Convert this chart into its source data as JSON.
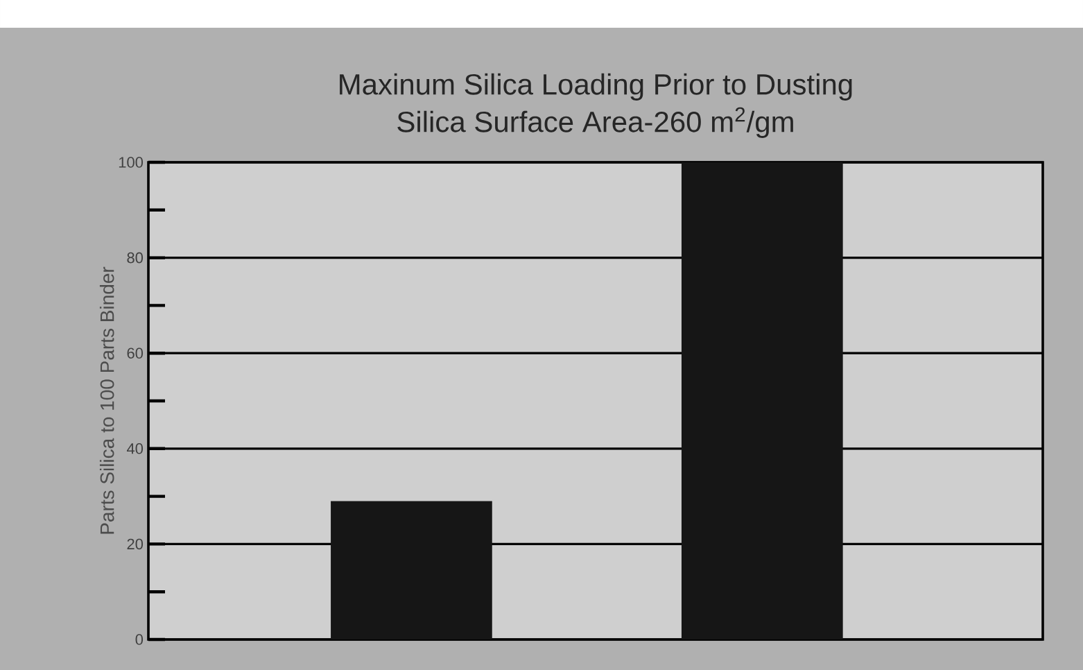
{
  "chart_data": {
    "type": "bar",
    "title": "Maxinum Silica Loading Prior to Dusting",
    "subtitle": "Silica Surface Area-260 m$^{2}$/gm",
    "ylabel": "Parts Silica to 100 Parts Binder",
    "categories": [
      null,
      null
    ],
    "values": [
      29,
      100
    ],
    "color": "#161616",
    "ylim": [
      0,
      100
    ],
    "yticks": [
      0,
      {
        "value": 10,
        "label": null
      },
      20,
      {
        "value": 30,
        "label": null
      },
      40,
      {
        "value": 50,
        "label": null
      },
      60,
      {
        "value": 70,
        "label": null
      },
      80,
      {
        "value": 90,
        "label": null
      },
      100
    ],
    "grid": "y"
  }
}
